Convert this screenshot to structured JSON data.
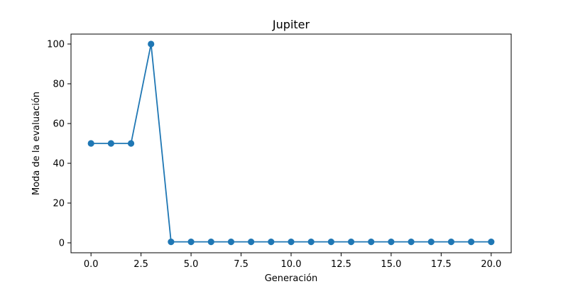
{
  "chart_data": {
    "type": "line",
    "title": "Jupiter",
    "xlabel": "Generación",
    "ylabel": "Moda de la evaluación",
    "xlim": [
      -1,
      21
    ],
    "ylim": [
      -5,
      105
    ],
    "x_ticks": [
      0.0,
      2.5,
      5.0,
      7.5,
      10.0,
      12.5,
      15.0,
      17.5,
      20.0
    ],
    "x_tick_labels": [
      "0.0",
      "2.5",
      "5.0",
      "7.5",
      "10.0",
      "12.5",
      "15.0",
      "17.5",
      "20.0"
    ],
    "y_ticks": [
      0,
      20,
      40,
      60,
      80,
      100
    ],
    "y_tick_labels": [
      "0",
      "20",
      "40",
      "60",
      "80",
      "100"
    ],
    "grid": false,
    "series": [
      {
        "color": "#1f77b4",
        "marker": "circle",
        "x": [
          0,
          1,
          2,
          3,
          4,
          5,
          6,
          7,
          8,
          9,
          10,
          11,
          12,
          13,
          14,
          15,
          16,
          17,
          18,
          19,
          20
        ],
        "y": [
          50,
          50,
          50,
          100,
          0.5,
          0.5,
          0.5,
          0.5,
          0.5,
          0.5,
          0.5,
          0.5,
          0.5,
          0.5,
          0.5,
          0.5,
          0.5,
          0.5,
          0.5,
          0.5,
          0.5
        ]
      }
    ]
  }
}
